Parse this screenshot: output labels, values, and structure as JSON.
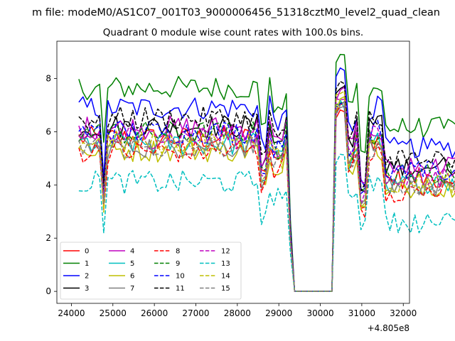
{
  "suptitle": "m file: modeM0/AS1C07_001T03_9000006456_51318cztM0_level2_quad_clean",
  "chart_data": {
    "type": "line",
    "title": "Quadrant 0 module wise count rates with 100.0s bins.",
    "xlabel": "",
    "ylabel": "",
    "x_offset_label": "+4.805e8",
    "xlim": [
      23650,
      32150
    ],
    "ylim": [
      -0.45,
      9.4
    ],
    "xticks": [
      24000,
      25000,
      26000,
      27000,
      28000,
      29000,
      30000,
      31000,
      32000
    ],
    "xtick_labels": [
      "24000",
      "25000",
      "26000",
      "27000",
      "28000",
      "29000",
      "30000",
      "31000",
      "32000"
    ],
    "yticks": [
      0,
      2,
      4,
      6,
      8
    ],
    "ytick_labels": [
      "0",
      "2",
      "4",
      "6",
      "8"
    ],
    "grid": false,
    "legend_position": "lower-left",
    "legend_ncol": 4,
    "x_start": 24180,
    "x_step": 100,
    "gap_range": [
      29380,
      30280
    ],
    "series": [
      {
        "name": "0",
        "color": "#ff0000",
        "dash": "solid",
        "baseline": 5.75,
        "valley": 3.1,
        "spike_peak": 7.0
      },
      {
        "name": "1",
        "color": "#008000",
        "dash": "solid",
        "baseline": 7.65,
        "valley": 5.5,
        "spike_peak": 9.0
      },
      {
        "name": "2",
        "color": "#0000ff",
        "dash": "solid",
        "baseline": 6.9,
        "valley": 4.0,
        "spike_peak": 8.3
      },
      {
        "name": "3",
        "color": "#000000",
        "dash": "solid",
        "baseline": 6.2,
        "valley": 3.8,
        "spike_peak": 7.8
      },
      {
        "name": "4",
        "color": "#bf00bf",
        "dash": "solid",
        "baseline": 6.15,
        "valley": 3.9,
        "spike_peak": 7.5
      },
      {
        "name": "5",
        "color": "#00bfbf",
        "dash": "solid",
        "baseline": 5.55,
        "valley": 3.3,
        "spike_peak": 7.0
      },
      {
        "name": "6",
        "color": "#bfbf00",
        "dash": "solid",
        "baseline": 5.3,
        "valley": 3.4,
        "spike_peak": 7.2
      },
      {
        "name": "7",
        "color": "#808080",
        "dash": "solid",
        "baseline": 5.45,
        "valley": 3.2,
        "spike_peak": 6.9
      },
      {
        "name": "8",
        "color": "#ff0000",
        "dash": "dashed",
        "baseline": 5.25,
        "valley": 3.0,
        "spike_peak": 7.0
      },
      {
        "name": "9",
        "color": "#008000",
        "dash": "dashed",
        "baseline": 5.95,
        "valley": 3.7,
        "spike_peak": 7.3
      },
      {
        "name": "10",
        "color": "#0000ff",
        "dash": "dashed",
        "baseline": 6.0,
        "valley": 3.6,
        "spike_peak": 7.2
      },
      {
        "name": "11",
        "color": "#000000",
        "dash": "dashed",
        "baseline": 6.5,
        "valley": 3.9,
        "spike_peak": 7.8
      },
      {
        "name": "12",
        "color": "#bf00bf",
        "dash": "dashed",
        "baseline": 5.8,
        "valley": 3.5,
        "spike_peak": 7.4
      },
      {
        "name": "13",
        "color": "#00bfbf",
        "dash": "dashed",
        "baseline": 4.1,
        "valley": 2.4,
        "spike_peak": 5.3
      },
      {
        "name": "14",
        "color": "#bfbf00",
        "dash": "dashed",
        "baseline": 5.6,
        "valley": 3.2,
        "spike_peak": 7.6
      },
      {
        "name": "15",
        "color": "#808080",
        "dash": "dashed",
        "baseline": 5.4,
        "valley": 3.3,
        "spike_peak": 7.1
      }
    ]
  }
}
